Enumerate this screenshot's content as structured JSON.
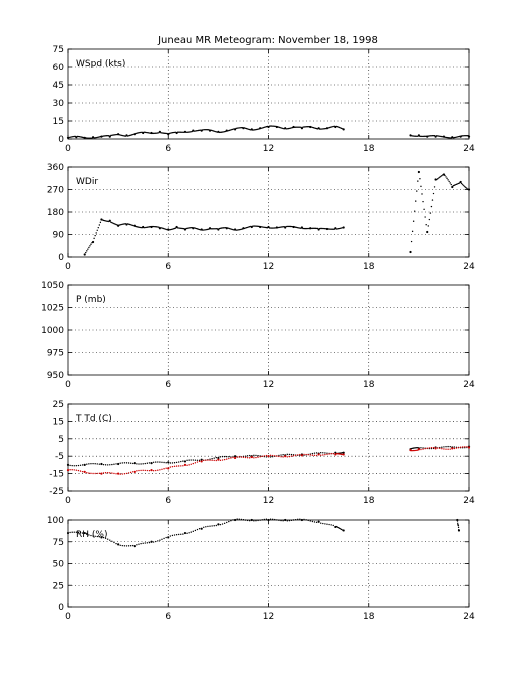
{
  "title": "Juneau MR Meteogram:   November 18, 1998",
  "chart_data": [
    {
      "type": "scatter",
      "label": "WSpd (kts)",
      "xlim": [
        0,
        24
      ],
      "ylim": [
        0,
        75
      ],
      "xticks": [
        0,
        6,
        12,
        18,
        24
      ],
      "yticks": [
        0,
        15,
        30,
        45,
        60,
        75
      ],
      "grid": true,
      "series": [
        {
          "color": "#000000",
          "segments": [
            [
              [
                0.0,
                1
              ],
              [
                0.5,
                1.5
              ],
              [
                1.0,
                1
              ],
              [
                1.5,
                1.5
              ],
              [
                2.0,
                2
              ],
              [
                2.5,
                2
              ],
              [
                3.0,
                4
              ],
              [
                3.5,
                3
              ],
              [
                4.0,
                4
              ],
              [
                4.5,
                5
              ],
              [
                5.0,
                5
              ],
              [
                5.5,
                6
              ],
              [
                6.0,
                4
              ],
              [
                6.5,
                5
              ],
              [
                7.0,
                6
              ],
              [
                7.5,
                7
              ],
              [
                8.0,
                7
              ],
              [
                8.5,
                7
              ],
              [
                9.0,
                6
              ],
              [
                9.5,
                7
              ],
              [
                10.0,
                8
              ],
              [
                10.5,
                9
              ],
              [
                11.0,
                8
              ],
              [
                11.5,
                9
              ],
              [
                12.0,
                10
              ],
              [
                12.5,
                10
              ],
              [
                13.0,
                9
              ],
              [
                13.5,
                10
              ],
              [
                14.0,
                9
              ],
              [
                14.5,
                10
              ],
              [
                15.0,
                9
              ],
              [
                15.5,
                9
              ],
              [
                16.0,
                10
              ],
              [
                16.5,
                8
              ]
            ],
            [
              [
                20.5,
                3
              ],
              [
                21.0,
                3
              ],
              [
                21.5,
                2
              ],
              [
                22.0,
                2
              ],
              [
                22.5,
                2
              ],
              [
                23.0,
                1.5
              ],
              [
                23.5,
                2
              ],
              [
                24.0,
                2
              ]
            ]
          ]
        }
      ]
    },
    {
      "type": "scatter",
      "label": "WDir",
      "xlim": [
        0,
        24
      ],
      "ylim": [
        0,
        360
      ],
      "xticks": [
        0,
        6,
        12,
        18,
        24
      ],
      "yticks": [
        0,
        90,
        180,
        270,
        360
      ],
      "grid": true,
      "series": [
        {
          "color": "#000000",
          "segments": [
            [
              [
                1.0,
                10
              ],
              [
                1.5,
                60
              ],
              [
                2.0,
                150
              ],
              [
                2.5,
                145
              ],
              [
                3.0,
                125
              ],
              [
                3.5,
                130
              ],
              [
                4.0,
                125
              ],
              [
                4.5,
                120
              ],
              [
                5.0,
                120
              ],
              [
                5.5,
                115
              ],
              [
                6.0,
                110
              ],
              [
                6.5,
                120
              ],
              [
                7.0,
                110
              ],
              [
                7.5,
                115
              ],
              [
                8.0,
                110
              ],
              [
                8.5,
                115
              ],
              [
                9.0,
                110
              ],
              [
                9.5,
                115
              ],
              [
                10.0,
                110
              ],
              [
                10.5,
                115
              ],
              [
                11.0,
                120
              ],
              [
                11.5,
                120
              ],
              [
                12.0,
                120
              ],
              [
                12.5,
                118
              ],
              [
                13.0,
                118
              ],
              [
                13.5,
                120
              ],
              [
                14.0,
                118
              ],
              [
                14.5,
                115
              ],
              [
                15.0,
                110
              ],
              [
                15.5,
                112
              ],
              [
                16.0,
                115
              ],
              [
                16.5,
                118
              ]
            ],
            [
              [
                20.5,
                20
              ],
              [
                21.0,
                340
              ],
              [
                21.5,
                100
              ],
              [
                22.0,
                310
              ],
              [
                22.5,
                330
              ],
              [
                23.0,
                280
              ],
              [
                23.5,
                300
              ],
              [
                24.0,
                270
              ]
            ]
          ]
        }
      ]
    },
    {
      "type": "scatter",
      "label": "P (mb)",
      "xlim": [
        0,
        24
      ],
      "ylim": [
        950,
        1050
      ],
      "xticks": [
        0,
        6,
        12,
        18,
        24
      ],
      "yticks": [
        950,
        975,
        1000,
        1025,
        1050
      ],
      "grid": true,
      "series": []
    },
    {
      "type": "scatter",
      "label": "T Td (C)",
      "xlim": [
        0,
        24
      ],
      "ylim": [
        -25,
        25
      ],
      "xticks": [
        0,
        6,
        12,
        18,
        24
      ],
      "yticks": [
        -25,
        -15,
        -5,
        5,
        15,
        25
      ],
      "grid": true,
      "series": [
        {
          "color": "#000000",
          "segments": [
            [
              [
                0.0,
                -10
              ],
              [
                1.0,
                -10
              ],
              [
                2.0,
                -9.5
              ],
              [
                3.0,
                -9.5
              ],
              [
                4.0,
                -9
              ],
              [
                5.0,
                -9
              ],
              [
                6.0,
                -8.5
              ],
              [
                7.0,
                -8
              ],
              [
                8.0,
                -7
              ],
              [
                9.0,
                -6
              ],
              [
                10.0,
                -5
              ],
              [
                11.0,
                -5
              ],
              [
                12.0,
                -5
              ],
              [
                13.0,
                -4.5
              ],
              [
                14.0,
                -4
              ],
              [
                15.0,
                -3.5
              ],
              [
                16.0,
                -3
              ],
              [
                16.5,
                -3
              ]
            ],
            [
              [
                20.5,
                -1
              ],
              [
                21.0,
                -0.5
              ],
              [
                22.0,
                0
              ],
              [
                23.0,
                0
              ],
              [
                24.0,
                0.5
              ]
            ]
          ]
        },
        {
          "color": "#cc0000",
          "segments": [
            [
              [
                0.0,
                -13
              ],
              [
                1.0,
                -14
              ],
              [
                2.0,
                -15
              ],
              [
                3.0,
                -15
              ],
              [
                4.0,
                -14
              ],
              [
                5.0,
                -13
              ],
              [
                6.0,
                -12
              ],
              [
                7.0,
                -10
              ],
              [
                8.0,
                -8
              ],
              [
                9.0,
                -7
              ],
              [
                10.0,
                -6
              ],
              [
                11.0,
                -5.5
              ],
              [
                12.0,
                -5
              ],
              [
                13.0,
                -5
              ],
              [
                14.0,
                -4.5
              ],
              [
                15.0,
                -4
              ],
              [
                16.0,
                -4
              ],
              [
                16.5,
                -4
              ]
            ],
            [
              [
                20.5,
                -1.5
              ],
              [
                21.0,
                -1
              ],
              [
                22.0,
                -0.5
              ],
              [
                23.0,
                -0.5
              ],
              [
                24.0,
                0
              ]
            ]
          ]
        }
      ]
    },
    {
      "type": "scatter",
      "label": "RH (%)",
      "xlim": [
        0,
        24
      ],
      "ylim": [
        0,
        100
      ],
      "xticks": [
        0,
        6,
        12,
        18,
        24
      ],
      "yticks": [
        0,
        25,
        50,
        75,
        100
      ],
      "grid": true,
      "series": [
        {
          "color": "#000000",
          "segments": [
            [
              [
                0.0,
                85
              ],
              [
                1.0,
                85
              ],
              [
                2.0,
                80
              ],
              [
                3.0,
                72
              ],
              [
                4.0,
                70
              ],
              [
                5.0,
                75
              ],
              [
                6.0,
                80
              ],
              [
                7.0,
                85
              ],
              [
                8.0,
                90
              ],
              [
                9.0,
                95
              ],
              [
                10.0,
                100
              ],
              [
                11.0,
                100
              ],
              [
                12.0,
                100
              ],
              [
                13.0,
                100
              ],
              [
                14.0,
                100
              ],
              [
                15.0,
                98
              ],
              [
                16.0,
                92
              ],
              [
                16.5,
                88
              ]
            ],
            [
              [
                23.3,
                100
              ],
              [
                23.4,
                88
              ]
            ]
          ]
        }
      ]
    }
  ]
}
